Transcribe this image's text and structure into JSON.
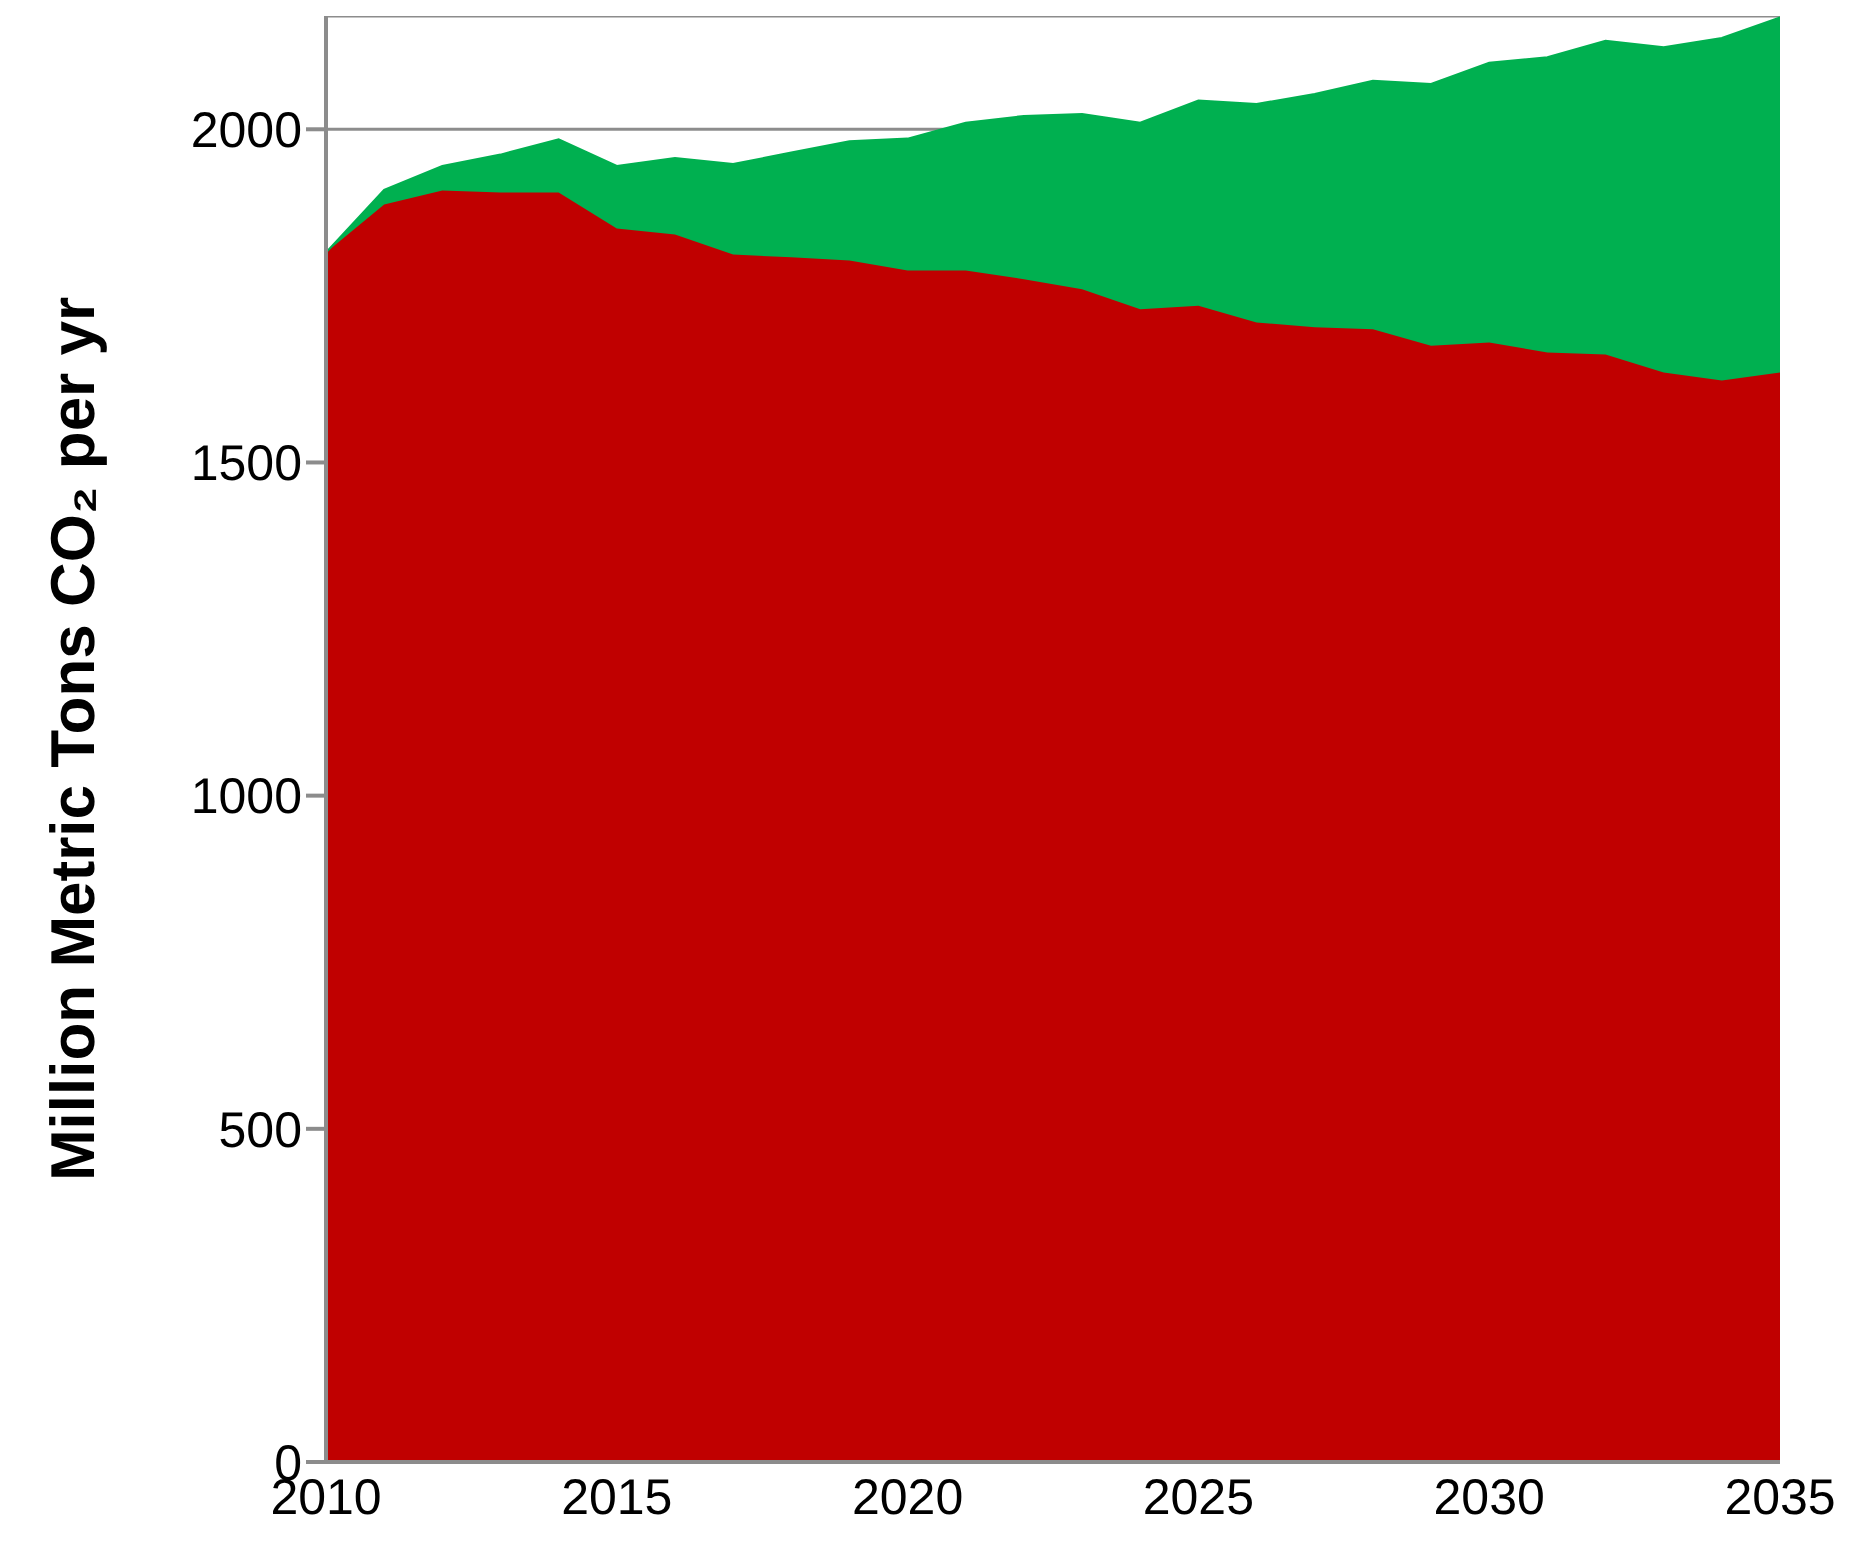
{
  "chart_data": {
    "type": "area",
    "stacked": true,
    "ylabel": "Million Metric Tons CO₂ per yr",
    "x": [
      2010,
      2011,
      2012,
      2013,
      2014,
      2015,
      2016,
      2017,
      2018,
      2019,
      2020,
      2021,
      2022,
      2023,
      2024,
      2025,
      2026,
      2027,
      2028,
      2029,
      2030,
      2031,
      2032,
      2033,
      2034,
      2035
    ],
    "series": [
      {
        "color": "#c00000",
        "values": [
          1815,
          1887,
          1908,
          1905,
          1905,
          1851,
          1842,
          1812,
          1808,
          1803,
          1788,
          1788,
          1775,
          1760,
          1730,
          1735,
          1710,
          1703,
          1700,
          1675,
          1680,
          1665,
          1662,
          1635,
          1623,
          1635
        ]
      },
      {
        "color": "#00b050",
        "values": [
          0,
          22,
          37,
          57,
          80,
          94,
          115,
          136,
          157,
          179,
          198,
          222,
          245,
          263,
          280,
          308,
          328,
          350,
          373,
          393,
          420,
          443,
          471,
          488,
          514,
          533
        ]
      }
    ],
    "xlim": [
      2010,
      2035
    ],
    "xticks": [
      2010,
      2015,
      2020,
      2025,
      2030,
      2035
    ],
    "ylim": [
      0,
      2170
    ],
    "yticks": [
      0,
      500,
      1000,
      1500,
      2000
    ],
    "grid": "y",
    "legend": false
  }
}
